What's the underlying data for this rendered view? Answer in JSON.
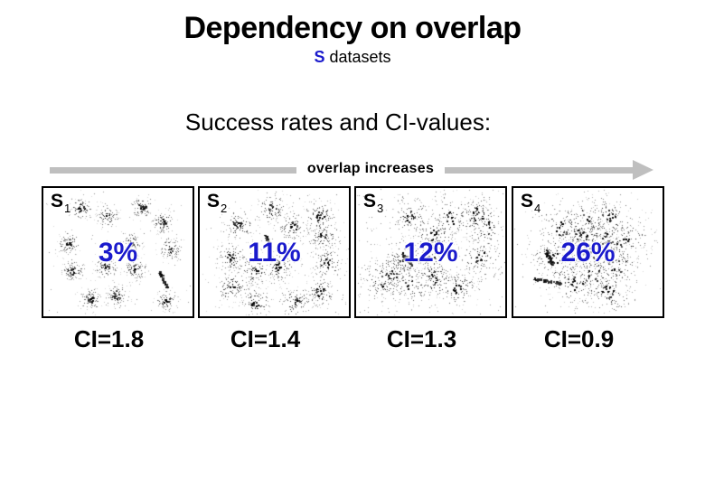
{
  "slide": {
    "title": "Dependency on overlap",
    "subtitle": {
      "highlight": "S",
      "rest": " datasets"
    },
    "heading": "Success rates and CI-values:",
    "arrow_label": "overlap increases",
    "colors": {
      "accent_blue": "#1a1acc",
      "arrow_gray": "#bfbfbf",
      "text_black": "#000000"
    },
    "panels": [
      {
        "name": "S",
        "sub": "1",
        "percent": "3%",
        "ci": "CI=1.8",
        "scatter": {
          "sigma": 6.5,
          "pts": 90,
          "noise": 60,
          "noise_center": false,
          "clusters": [
            [
              41,
              22
            ],
            [
              71,
              31
            ],
            [
              109,
              21
            ],
            [
              132,
              37
            ],
            [
              27,
              61
            ],
            [
              97,
              61
            ],
            [
              141,
              67
            ],
            [
              32,
              91
            ],
            [
              69,
              87
            ],
            [
              101,
              89
            ],
            [
              52,
              122
            ],
            [
              81,
              119
            ],
            [
              136,
              124
            ]
          ],
          "streaks": [
            [
              128,
              92,
              137,
              110
            ]
          ]
        }
      },
      {
        "name": "S",
        "sub": "2",
        "percent": "11%",
        "ci": "CI=1.4",
        "scatter": {
          "sigma": 9,
          "pts": 100,
          "noise": 170,
          "noise_center": false,
          "clusters": [
            [
              79,
              22
            ],
            [
              132,
              31
            ],
            [
              42,
              41
            ],
            [
              102,
              42
            ],
            [
              136,
              52
            ],
            [
              34,
              76
            ],
            [
              61,
              91
            ],
            [
              87,
              86
            ],
            [
              36,
              109
            ],
            [
              61,
              126
            ],
            [
              106,
              126
            ],
            [
              132,
              114
            ],
            [
              141,
              82
            ]
          ],
          "streaks": [
            [
              72,
              50,
              78,
              66
            ]
          ]
        }
      },
      {
        "name": "S",
        "sub": "3",
        "percent": "12%",
        "ci": "CI=1.3",
        "scatter": {
          "sigma": 12,
          "pts": 100,
          "noise": 270,
          "noise_center": false,
          "clusters": [
            [
              60,
              31
            ],
            [
              105,
              32
            ],
            [
              133,
              29
            ],
            [
              86,
              52
            ],
            [
              53,
              76
            ],
            [
              40,
              94
            ],
            [
              60,
              107
            ],
            [
              86,
              99
            ],
            [
              111,
              109
            ],
            [
              28,
              102
            ],
            [
              136,
              76
            ],
            [
              141,
              42
            ],
            [
              80,
              75
            ]
          ],
          "streaks": [
            [
              51,
              74,
              61,
              84
            ]
          ]
        }
      },
      {
        "name": "S",
        "sub": "4",
        "percent": "26%",
        "ci": "CI=0.9",
        "scatter": {
          "sigma": 15,
          "pts": 100,
          "noise": 330,
          "noise_center": true,
          "clusters": [
            [
              78,
              36
            ],
            [
              105,
              33
            ],
            [
              53,
              43
            ],
            [
              75,
              53
            ],
            [
              102,
              55
            ],
            [
              123,
              60
            ],
            [
              45,
              78
            ],
            [
              88,
              95
            ],
            [
              112,
              85
            ],
            [
              67,
              105
            ],
            [
              105,
              113
            ],
            [
              82,
              75
            ]
          ],
          "streaks": [
            [
              35,
              68,
              43,
              84
            ],
            [
              22,
              100,
              52,
              105
            ]
          ]
        }
      }
    ]
  },
  "layout_meta": {
    "panel_lefts": [
      46,
      219,
      392,
      566
    ],
    "ci_shift": -10
  }
}
